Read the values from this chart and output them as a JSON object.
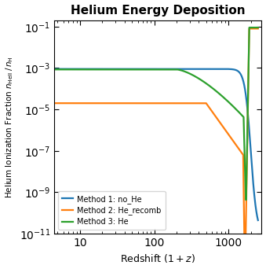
{
  "title": "Helium Energy Deposition",
  "xlabel": "Redshift $(1+z)$",
  "ylabel": "Helium Ionization Fraction $n_{\\mathrm{HeII}}\\,/\\,n_{\\mathrm{H}}$",
  "xlim": [
    4.5,
    2800
  ],
  "ylim": [
    1e-11,
    0.2
  ],
  "yticks": [
    1e-11,
    1e-09,
    1e-07,
    1e-05,
    0.001,
    0.1
  ],
  "legend": [
    {
      "label": "Method 1: no_He",
      "color": "#1f77b4"
    },
    {
      "label": "Method 2: He_recomb",
      "color": "#ff7f0e"
    },
    {
      "label": "Method 3: He",
      "color": "#2ca02c"
    }
  ],
  "line_width": 1.6,
  "figsize": [
    3.39,
    3.42
  ],
  "dpi": 100
}
